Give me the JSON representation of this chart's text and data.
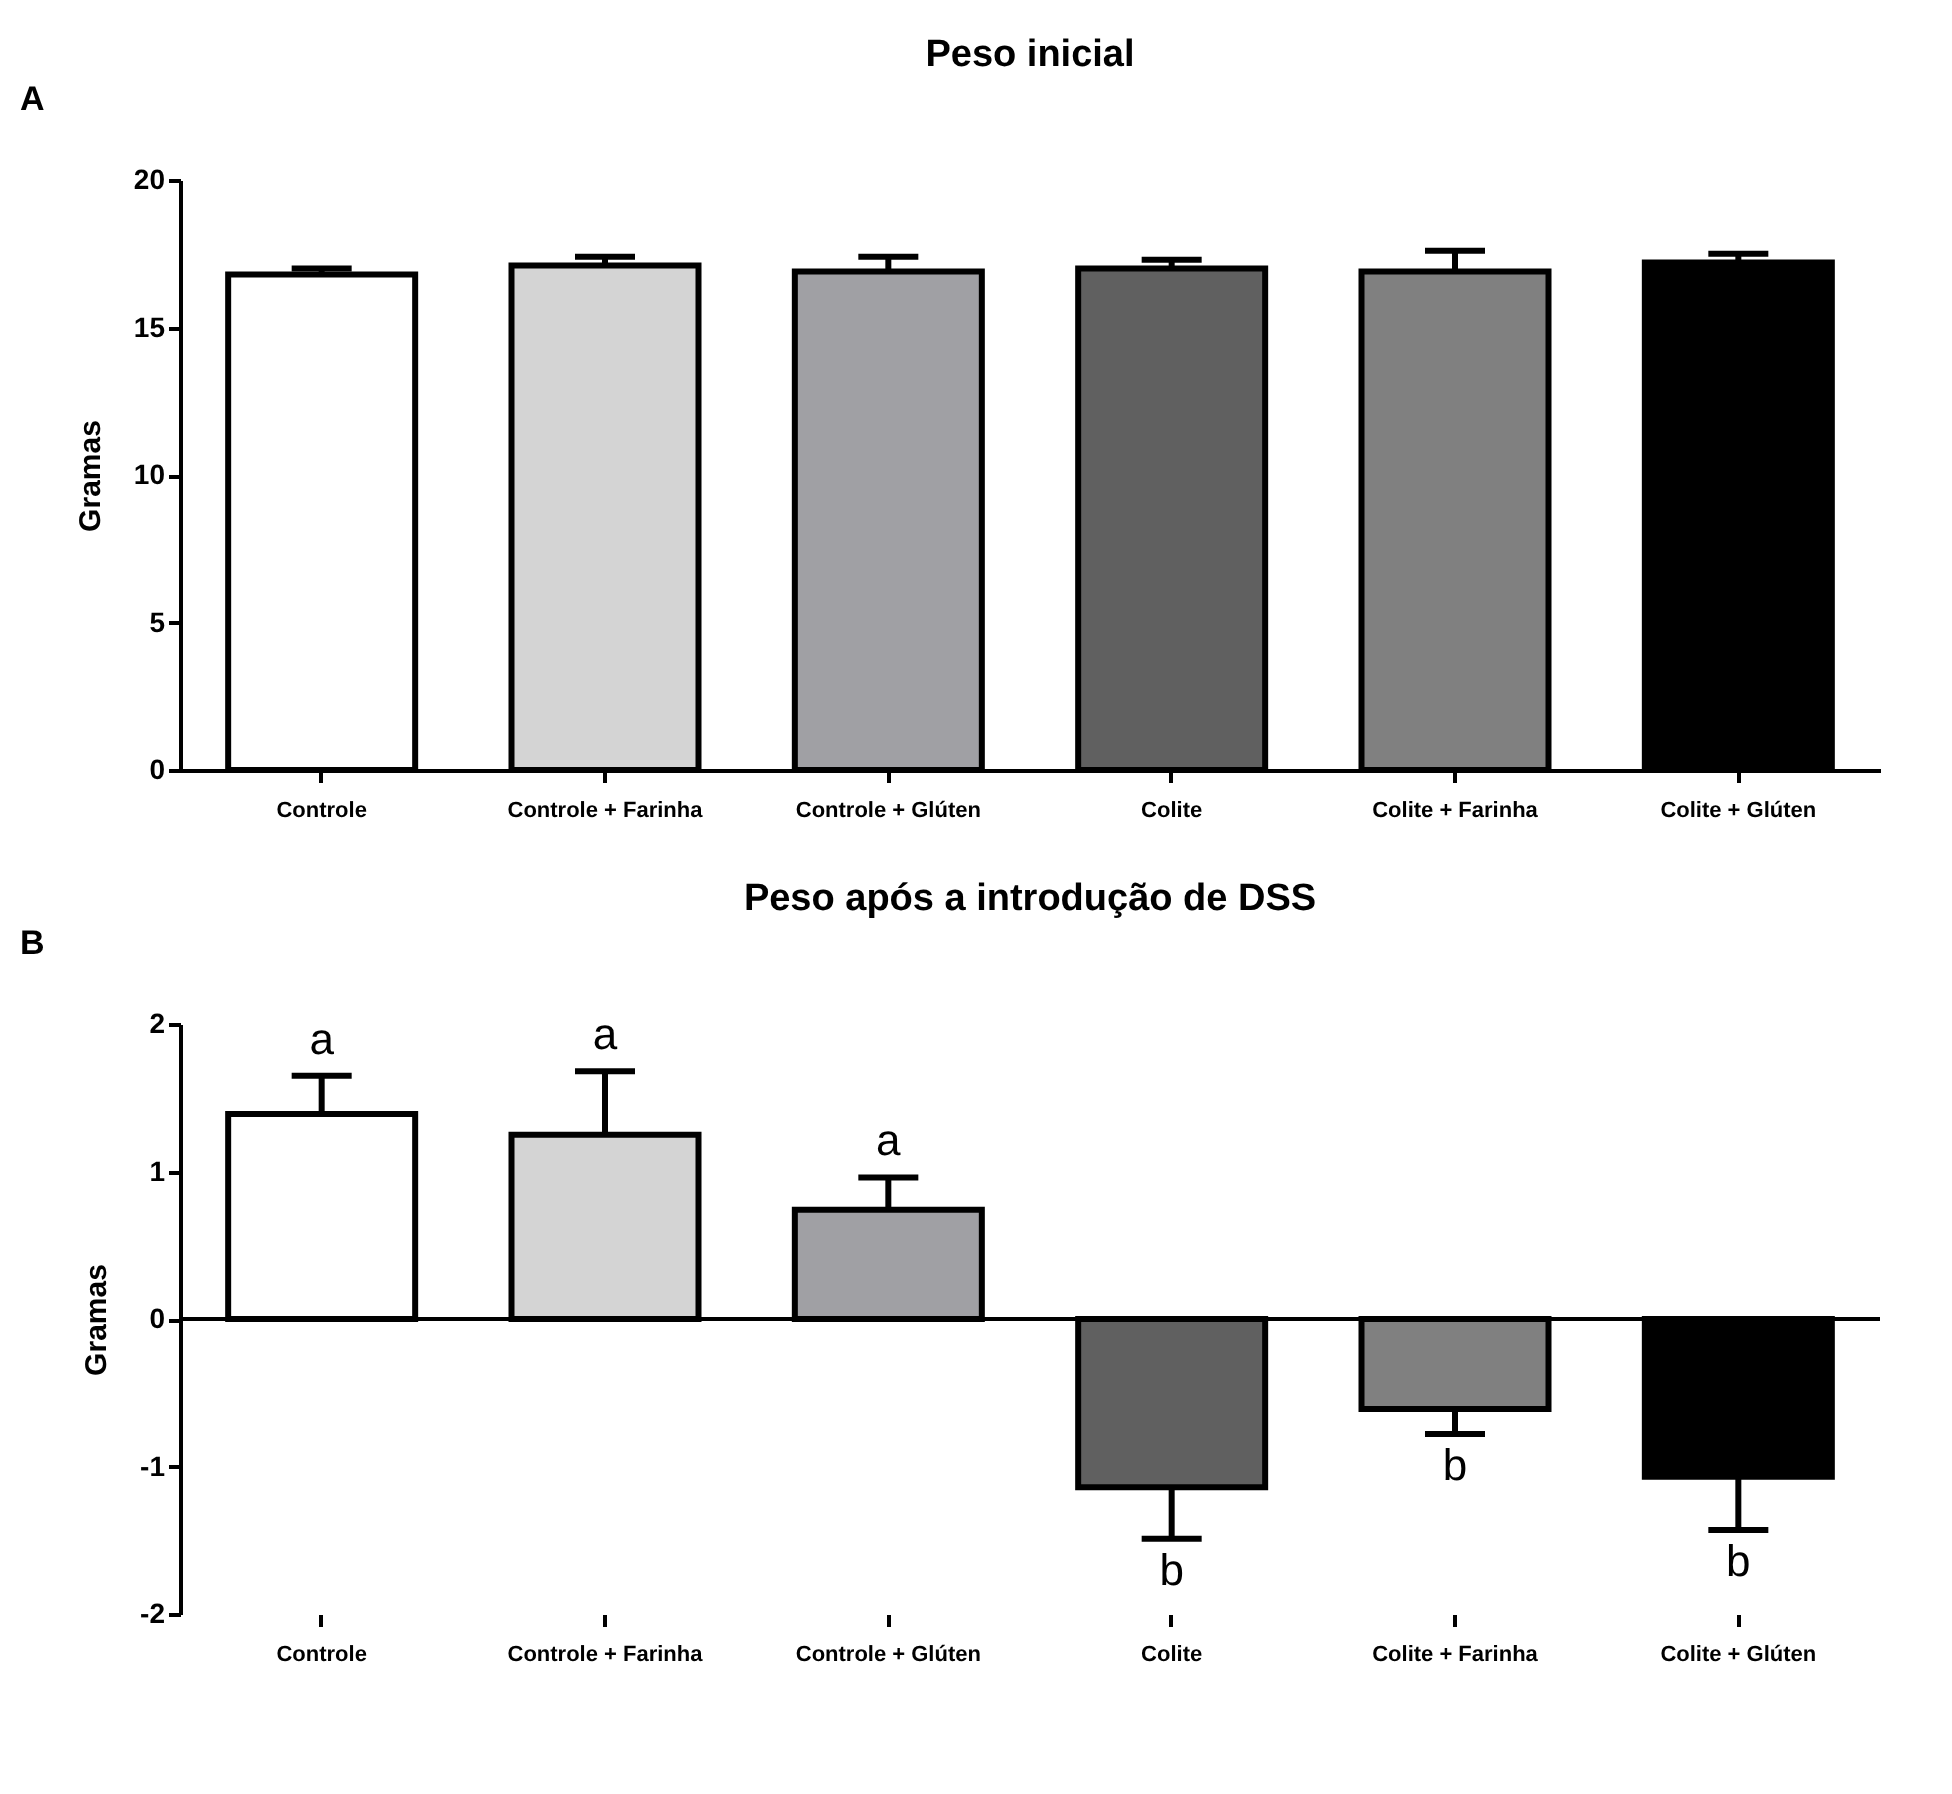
{
  "chart_data": [
    {
      "type": "bar",
      "title": "Peso inicial",
      "ylabel": "Gramas",
      "annotations": [
        "A"
      ],
      "categories": [
        "Controle",
        "Controle + Farinha",
        "Controle + Glúten",
        "Colite",
        "Colite + Farinha",
        "Colite + Glúten"
      ],
      "values": [
        16.8,
        17.1,
        16.9,
        17.0,
        16.9,
        17.2
      ],
      "errors": [
        [
          16.8,
          17.0
        ],
        [
          17.1,
          17.4
        ],
        [
          16.9,
          17.4
        ],
        [
          17.0,
          17.3
        ],
        [
          16.9,
          17.6
        ],
        [
          17.2,
          17.5
        ]
      ],
      "colors": [
        "#ffffff",
        "#d4d4d4",
        "#a0a0a4",
        "#606060",
        "#808080",
        "#000000"
      ],
      "ylim": [
        0,
        20
      ],
      "yticks": [
        0,
        5,
        10,
        15,
        20
      ],
      "grid": false,
      "legend": false
    },
    {
      "type": "bar",
      "title": "Peso após a introdução de DSS",
      "ylabel": "Gramas",
      "annotations": [
        "B",
        {
          "text": "a",
          "x": "Controle",
          "y": 1.65
        },
        {
          "text": "a",
          "x": "Controle + Farinha",
          "y": 1.68
        },
        {
          "text": "a",
          "x": "Controle + Glúten",
          "y": 0.96
        },
        {
          "text": "b",
          "x": "Colite",
          "y": -1.49
        },
        {
          "text": "b",
          "x": "Colite + Farinha",
          "y": -0.78
        },
        {
          "text": "b",
          "x": "Colite + Glúten",
          "y": -1.43
        }
      ],
      "categories": [
        "Controle",
        "Controle + Farinha",
        "Controle + Glúten",
        "Colite",
        "Colite + Farinha",
        "Colite + Glúten"
      ],
      "values": [
        1.39,
        1.25,
        0.74,
        -1.14,
        -0.61,
        -1.07
      ],
      "errors": [
        [
          1.39,
          1.65
        ],
        [
          1.25,
          1.68
        ],
        [
          0.74,
          0.96
        ],
        [
          -1.49,
          -1.14
        ],
        [
          -0.78,
          -0.61
        ],
        [
          -1.43,
          -1.07
        ]
      ],
      "colors": [
        "#ffffff",
        "#d4d4d4",
        "#a0a0a4",
        "#606060",
        "#808080",
        "#000000"
      ],
      "ylim": [
        -2,
        2
      ],
      "yticks": [
        -2,
        -1,
        0,
        1,
        2
      ],
      "ref_lines": [
        {
          "axis": "y",
          "value": 0,
          "color": "#000000"
        }
      ],
      "grid": false,
      "legend": false
    }
  ]
}
